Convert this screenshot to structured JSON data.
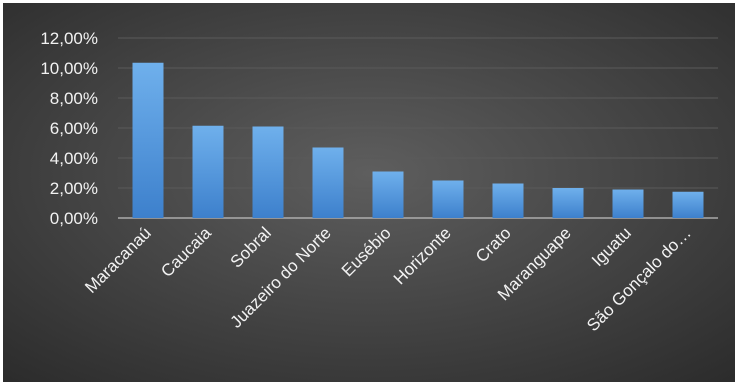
{
  "chart_data": {
    "type": "bar",
    "title": "",
    "xlabel": "",
    "ylabel": "",
    "categories": [
      "Maracanaú",
      "Caucaia",
      "Sobral",
      "Juazeiro do Norte",
      "Eusébio",
      "Horizonte",
      "Crato",
      "Maranguape",
      "Iguatu",
      "São Gonçalo do…"
    ],
    "values": [
      10.35,
      6.15,
      6.1,
      4.7,
      3.1,
      2.5,
      2.3,
      2.0,
      1.9,
      1.75
    ],
    "ylim": [
      0,
      12
    ],
    "y_ticks": [
      "0,00%",
      "2,00%",
      "4,00%",
      "6,00%",
      "8,00%",
      "10,00%",
      "12,00%"
    ],
    "grid": true,
    "legend": "none",
    "colors": {
      "background_outer": "#2b2b2b",
      "background_inner": "#5e5e5e",
      "bar_top": "#6fb0ec",
      "bar_bottom": "#3d80cc",
      "grid": "#5a5a5a",
      "text": "#f2f2f2"
    }
  }
}
